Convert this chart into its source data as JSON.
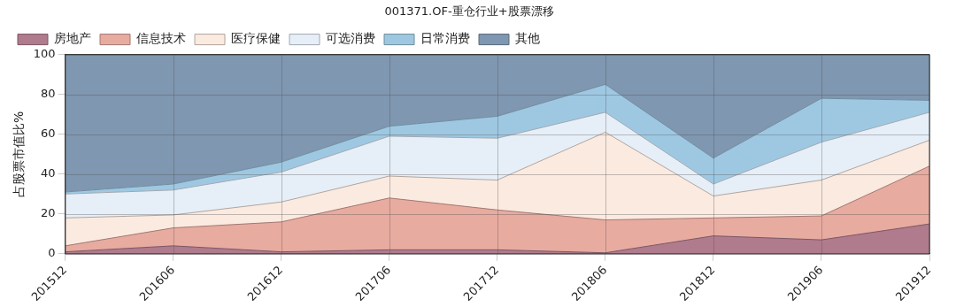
{
  "chart_data": {
    "type": "area",
    "title": "001371.OF-重仓行业+股票漂移",
    "ylabel": "占股票市值比%",
    "stacked": true,
    "categories": [
      "201512",
      "201606",
      "201612",
      "201706",
      "201712",
      "201806",
      "201812",
      "201906",
      "201912"
    ],
    "series": [
      {
        "name": "房地产",
        "color": "#b07b8d",
        "values": [
          1,
          4,
          1,
          2,
          2,
          0.5,
          9,
          7,
          15
        ]
      },
      {
        "name": "信息技术",
        "color": "#e8aba0",
        "values": [
          3,
          9,
          15,
          26,
          20,
          16.5,
          9,
          12,
          29
        ]
      },
      {
        "name": "医疗保健",
        "color": "#fbeae0",
        "values": [
          14,
          6.5,
          10,
          11,
          15,
          44,
          11,
          18,
          13
        ]
      },
      {
        "name": "可选消费",
        "color": "#e6eff8",
        "values": [
          12,
          12.5,
          15,
          20,
          21,
          10,
          6,
          19,
          14
        ]
      },
      {
        "name": "日常消费",
        "color": "#9ec8e2",
        "values": [
          1,
          3,
          5,
          5,
          11,
          14,
          13,
          22,
          6
        ]
      },
      {
        "name": "其他",
        "color": "#7f97b0",
        "values": [
          69,
          65,
          54,
          36,
          31,
          15,
          52,
          22,
          23
        ]
      }
    ],
    "ylim": [
      0,
      100
    ],
    "yticks": [
      0,
      20,
      40,
      60,
      80,
      100
    ],
    "grid": true,
    "legend": "top left"
  }
}
